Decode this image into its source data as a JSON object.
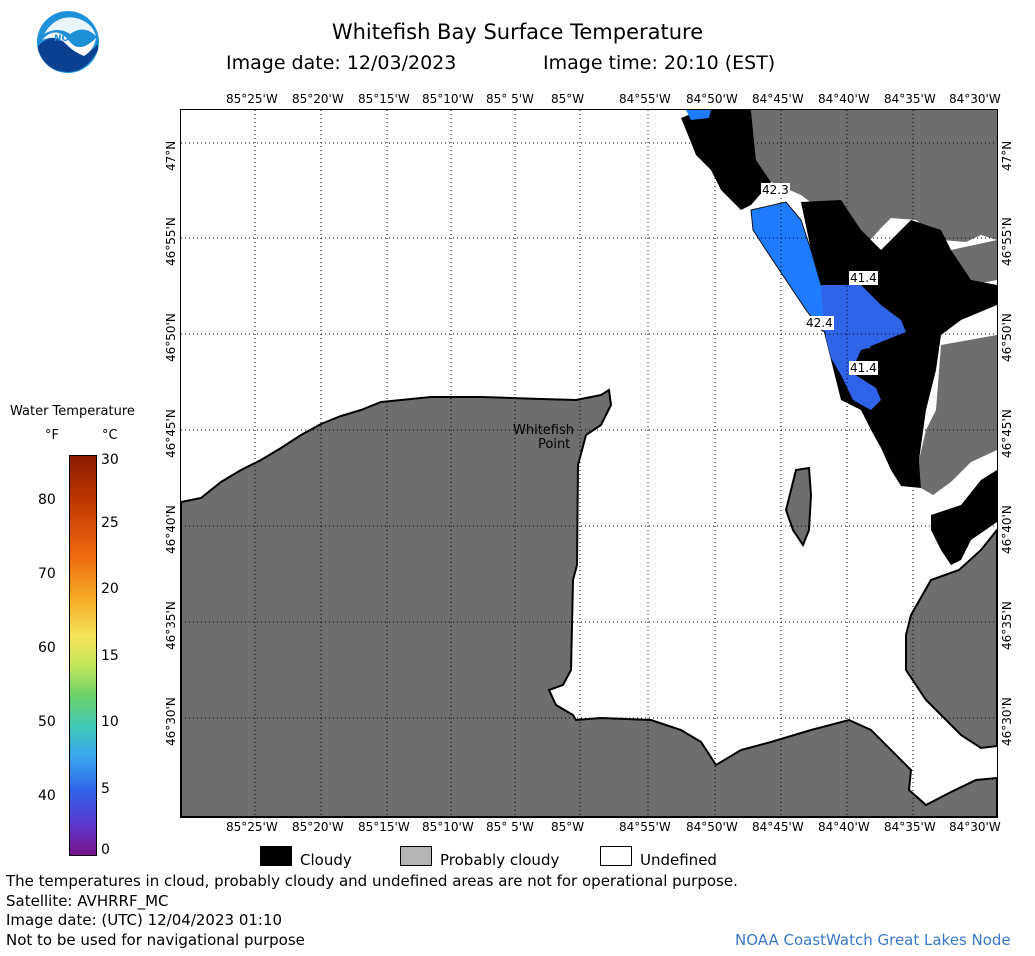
{
  "header": {
    "title": "Whitefish Bay Surface Temperature",
    "date_label": "Image date: 12/03/2023",
    "time_label": "Image time: 20:10 (EST)"
  },
  "logo": {
    "text": "NOAA"
  },
  "map": {
    "lon_labels": [
      "85°25'W",
      "85°20'W",
      "85°15'W",
      "85°10'W",
      "85° 5'W",
      "85°W",
      "84°55'W",
      "84°50'W",
      "84°45'W",
      "84°40'W",
      "84°35'W",
      "84°30'W"
    ],
    "lat_labels": [
      "47°N",
      "46°55'N",
      "46°50'N",
      "46°45'N",
      "46°40'N",
      "46°35'N",
      "46°30'N"
    ],
    "place_label_line1": "Whitefish",
    "place_label_line2": "Point",
    "temp_labels": [
      "42.3",
      "41.4",
      "42.4",
      "41.4"
    ],
    "colors": {
      "land": "#6e6e6e",
      "cloud": "#000000",
      "water_warm": "#1f7bff",
      "water_cool": "#2f63e8",
      "undefined": "#ffffff"
    }
  },
  "colorbar": {
    "title": "Water Temperature",
    "unit_f": "°F",
    "unit_c": "°C",
    "f_ticks": [
      "80",
      "70",
      "60",
      "50",
      "40"
    ],
    "c_ticks": [
      "30",
      "25",
      "20",
      "15",
      "10",
      "5",
      "0"
    ]
  },
  "legend": {
    "cloudy": "Cloudy",
    "probably_cloudy": "Probably cloudy",
    "undefined": "Undefined"
  },
  "footer": {
    "note1": "The temperatures in cloud, probably cloudy and undefined areas are not for operational purpose.",
    "note2": "Satellite: AVHRRF_MC",
    "note3": "Image date: (UTC) 12/04/2023  01:10",
    "note4": "Not to be used for navigational purpose",
    "credit": "NOAA CoastWatch Great Lakes Node"
  }
}
